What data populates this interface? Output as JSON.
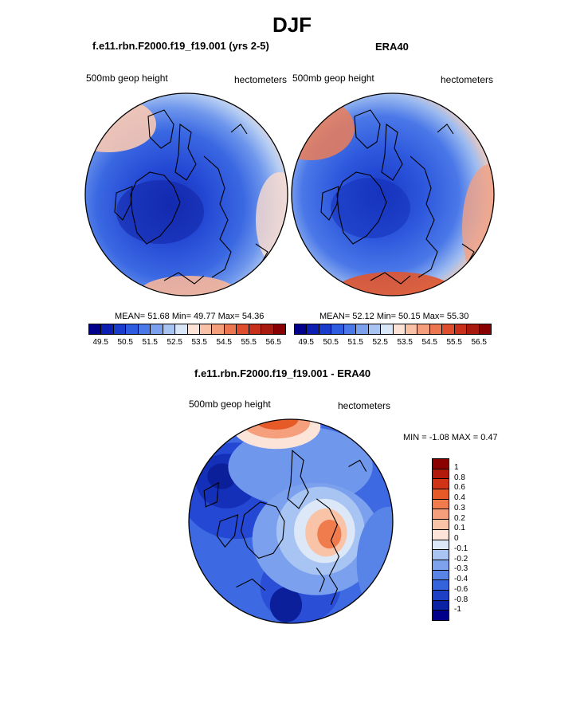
{
  "figure": {
    "title": "DJF",
    "units": "hectometers",
    "variable": "500mb geop height"
  },
  "panels": [
    {
      "id": "model",
      "title": "f.e11.rbn.F2000.f19_f19.001 (yrs 2-5)",
      "left_label": "500mb geop height",
      "right_label": "hectometers",
      "stats": "MEAN=  51.68  Min=  49.77  Max=  54.36",
      "mean": 51.68,
      "min": 49.77,
      "max": 54.36
    },
    {
      "id": "obs",
      "title": "ERA40",
      "left_label": "500mb geop height",
      "right_label": "hectometers",
      "stats": "MEAN=  52.12  Min=  50.15  Max=  55.30",
      "mean": 52.12,
      "min": 50.15,
      "max": 55.3
    },
    {
      "id": "diff",
      "title": "f.e11.rbn.F2000.f19_f19.001 - ERA40",
      "left_label": "500mb geop height",
      "right_label": "hectometers",
      "stats": "MIN =  -1.08 MAX =   0.47",
      "min": -1.08,
      "max": 0.47
    }
  ],
  "colorbars": {
    "abs_ticks": [
      "49.5",
      "50.5",
      "51.5",
      "52.5",
      "53.5",
      "54.5",
      "55.5",
      "56.5"
    ],
    "abs_colors": [
      "#00008a",
      "#0c1fb0",
      "#1a3ccd",
      "#2d5ce0",
      "#4a78e8",
      "#7aa0ee",
      "#a8c4f2",
      "#d8e6f8",
      "#fde3d6",
      "#f9c2a6",
      "#f49e7c",
      "#ec7650",
      "#de4e2c",
      "#c8301a",
      "#a81a0e",
      "#880000"
    ],
    "diff_ticks": [
      "1",
      "0.8",
      "0.6",
      "0.4",
      "0.3",
      "0.2",
      "0.1",
      "0",
      "-0.1",
      "-0.2",
      "-0.3",
      "-0.4",
      "-0.6",
      "-0.8",
      "-1"
    ],
    "diff_colors": [
      "#8b0000",
      "#b21a0c",
      "#d03316",
      "#e65a28",
      "#f07c4e",
      "#f59f7c",
      "#f9c3a8",
      "#fde4d8",
      "#dce8f8",
      "#a9c4f2",
      "#7ea3ec",
      "#5784e6",
      "#3463dc",
      "#1e40c4",
      "#0c22a4",
      "#00008a"
    ]
  }
}
